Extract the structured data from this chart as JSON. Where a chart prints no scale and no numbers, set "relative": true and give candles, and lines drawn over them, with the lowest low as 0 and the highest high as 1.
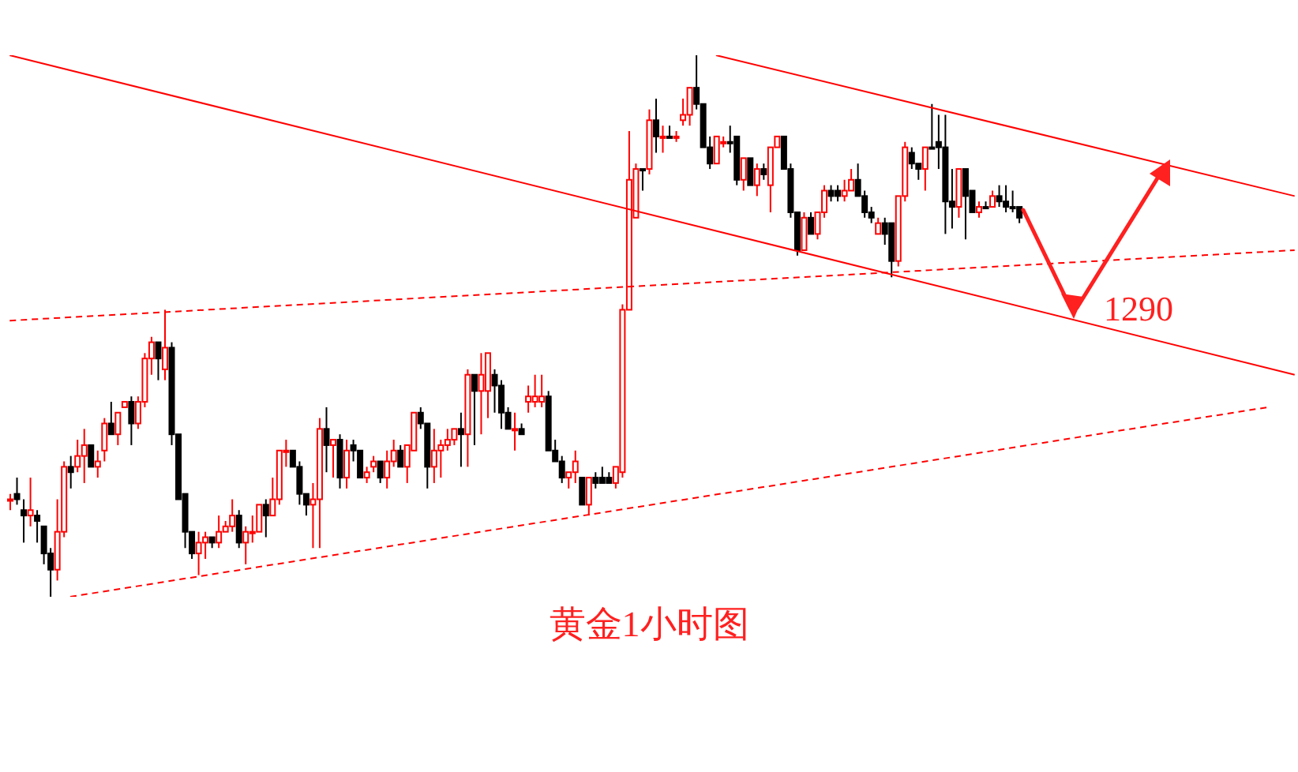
{
  "chart_data": {
    "type": "candlestick",
    "relative": true,
    "title": "黄金1小时图",
    "annotations": [
      "1290"
    ],
    "categories": [
      null,
      null,
      null,
      null,
      null,
      null,
      null,
      null,
      null,
      null,
      null,
      null,
      null,
      null,
      null,
      null,
      null,
      null,
      null,
      null,
      null,
      null,
      null,
      null,
      null,
      null,
      null,
      null,
      null,
      null,
      null,
      null,
      null,
      null,
      null,
      null,
      null,
      null,
      null,
      null,
      null,
      null,
      null,
      null,
      null,
      null,
      null,
      null,
      null,
      null,
      null,
      null,
      null,
      null,
      null,
      null,
      null,
      null,
      null,
      null,
      null,
      null,
      null,
      null,
      null,
      null,
      null,
      null,
      null,
      null,
      null,
      null,
      null,
      null,
      null,
      null,
      null,
      null,
      null,
      null,
      null,
      null,
      null,
      null,
      null,
      null,
      null,
      null,
      null,
      null,
      null,
      null,
      null,
      null,
      null,
      null,
      null,
      null,
      null,
      null,
      null,
      null,
      null,
      null,
      null,
      null,
      null,
      null,
      null,
      null,
      null,
      null,
      null,
      null,
      null,
      null,
      null,
      null,
      null,
      null,
      null,
      null,
      null,
      null,
      null,
      null,
      null,
      null,
      null,
      null,
      null,
      null,
      null,
      null,
      null,
      null,
      null,
      null,
      null,
      null,
      null,
      null,
      null,
      null,
      null,
      null,
      null,
      null,
      null,
      null,
      null,
      null,
      null,
      null,
      null,
      null,
      null,
      null,
      null,
      null,
      null,
      null,
      null,
      null,
      null,
      null,
      null,
      null,
      null,
      null,
      null,
      null,
      null,
      null,
      null,
      null,
      null,
      null,
      null,
      null,
      null,
      null,
      null,
      null,
      null,
      null,
      null,
      null,
      null,
      null,
      null,
      null
    ],
    "ohlc": [
      [
        0.18,
        0.19,
        0.16,
        0.18
      ],
      [
        0.19,
        0.22,
        0.17,
        0.18
      ],
      [
        0.16,
        0.18,
        0.1,
        0.15
      ],
      [
        0.15,
        0.22,
        0.13,
        0.16
      ],
      [
        0.15,
        0.16,
        0.1,
        0.14
      ],
      [
        0.13,
        0.13,
        0.06,
        0.08
      ],
      [
        0.08,
        0.09,
        0,
        0.05
      ],
      [
        0.05,
        0.18,
        0.03,
        0.12
      ],
      [
        0.12,
        0.25,
        0.11,
        0.24
      ],
      [
        0.24,
        0.26,
        0.2,
        0.23
      ],
      [
        0.24,
        0.29,
        0.23,
        0.26
      ],
      [
        0.26,
        0.31,
        0.21,
        0.28
      ],
      [
        0.28,
        0.28,
        0.24,
        0.24
      ],
      [
        0.24,
        0.27,
        0.22,
        0.25
      ],
      [
        0.27,
        0.33,
        0.25,
        0.32
      ],
      [
        0.32,
        0.36,
        0.3,
        0.3
      ],
      [
        0.3,
        0.34,
        0.28,
        0.34
      ],
      [
        0.35,
        0.36,
        0.35,
        0.36
      ],
      [
        0.36,
        0.37,
        0.28,
        0.32
      ],
      [
        0.32,
        0.37,
        0.31,
        0.36
      ],
      [
        0.36,
        0.45,
        0.35,
        0.44
      ],
      [
        0.44,
        0.48,
        0.41,
        0.47
      ],
      [
        0.47,
        0.47,
        0.4,
        0.44
      ],
      [
        0.42,
        0.53,
        0.4,
        0.46
      ],
      [
        0.46,
        0.47,
        0.28,
        0.3
      ],
      [
        0.3,
        0.3,
        0.18,
        0.18
      ],
      [
        0.19,
        0.19,
        0.09,
        0.12
      ],
      [
        0.12,
        0.12,
        0.07,
        0.08
      ],
      [
        0.08,
        0.12,
        0.04,
        0.1
      ],
      [
        0.1,
        0.12,
        0.07,
        0.11
      ],
      [
        0.11,
        0.11,
        0.09,
        0.1
      ],
      [
        0.1,
        0.15,
        0.09,
        0.12
      ],
      [
        0.12,
        0.14,
        0.12,
        0.13
      ],
      [
        0.13,
        0.18,
        0.12,
        0.15
      ],
      [
        0.15,
        0.16,
        0.09,
        0.1
      ],
      [
        0.1,
        0.13,
        0.06,
        0.12
      ],
      [
        0.12,
        0.15,
        0.1,
        0.12
      ],
      [
        0.12,
        0.17,
        0.12,
        0.17
      ],
      [
        0.17,
        0.18,
        0.11,
        0.15
      ],
      [
        0.15,
        0.22,
        0.15,
        0.18
      ],
      [
        0.18,
        0.27,
        0.17,
        0.27
      ],
      [
        0.27,
        0.29,
        0.24,
        0.27
      ],
      [
        0.27,
        0.27,
        0.24,
        0.24
      ],
      [
        0.24,
        0.25,
        0.17,
        0.19
      ],
      [
        0.19,
        0.19,
        0.15,
        0.17
      ],
      [
        0.17,
        0.21,
        0.09,
        0.18
      ],
      [
        0.18,
        0.33,
        0.09,
        0.31
      ],
      [
        0.31,
        0.35,
        0.23,
        0.28
      ],
      [
        0.28,
        0.29,
        0.22,
        0.29
      ],
      [
        0.29,
        0.3,
        0.2,
        0.22
      ],
      [
        0.22,
        0.29,
        0.2,
        0.27
      ],
      [
        0.28,
        0.29,
        0.25,
        0.27
      ],
      [
        0.27,
        0.27,
        0.22,
        0.22
      ],
      [
        0.22,
        0.24,
        0.21,
        0.23
      ],
      [
        0.24,
        0.26,
        0.23,
        0.25
      ],
      [
        0.25,
        0.25,
        0.21,
        0.22
      ],
      [
        0.22,
        0.27,
        0.2,
        0.25
      ],
      [
        0.25,
        0.29,
        0.24,
        0.27
      ],
      [
        0.27,
        0.28,
        0.24,
        0.24
      ],
      [
        0.24,
        0.28,
        0.21,
        0.28
      ],
      [
        0.27,
        0.34,
        0.27,
        0.34
      ],
      [
        0.34,
        0.35,
        0.31,
        0.32
      ],
      [
        0.32,
        0.32,
        0.2,
        0.24
      ],
      [
        0.24,
        0.31,
        0.21,
        0.27
      ],
      [
        0.27,
        0.29,
        0.22,
        0.28
      ],
      [
        0.28,
        0.31,
        0.27,
        0.29
      ],
      [
        0.29,
        0.31,
        0.28,
        0.31
      ],
      [
        0.31,
        0.34,
        0.24,
        0.3
      ],
      [
        0.3,
        0.42,
        0.24,
        0.41
      ],
      [
        0.41,
        0.41,
        0.28,
        0.38
      ],
      [
        0.38,
        0.45,
        0.3,
        0.41
      ],
      [
        0.38,
        0.45,
        0.33,
        0.45
      ],
      [
        0.41,
        0.42,
        0.34,
        0.39
      ],
      [
        0.39,
        0.4,
        0.31,
        0.34
      ],
      [
        0.34,
        0.35,
        0.31,
        0.31
      ],
      [
        0.31,
        0.34,
        0.27,
        0.31
      ],
      [
        0.31,
        0.32,
        0.3,
        0.3
      ],
      [
        0.36,
        0.39,
        0.34,
        0.37
      ],
      [
        0.36,
        0.41,
        0.35,
        0.37
      ],
      [
        0.36,
        0.41,
        0.35,
        0.37
      ],
      [
        0.37,
        0.38,
        0.27,
        0.27
      ],
      [
        0.27,
        0.29,
        0.25,
        0.25
      ],
      [
        0.25,
        0.26,
        0.21,
        0.22
      ],
      [
        0.22,
        0.23,
        0.2,
        0.23
      ],
      [
        0.23,
        0.27,
        0.21,
        0.25
      ],
      [
        0.22,
        0.22,
        0.17,
        0.17
      ],
      [
        0.17,
        0.22,
        0.15,
        0.22
      ],
      [
        0.22,
        0.23,
        0.2,
        0.21
      ],
      [
        0.22,
        0.24,
        0.21,
        0.21
      ],
      [
        0.22,
        0.23,
        0.21,
        0.21
      ],
      [
        0.21,
        0.24,
        0.2,
        0.24
      ],
      [
        0.23,
        0.54,
        0.22,
        0.53
      ],
      [
        0.53,
        0.86,
        0.53,
        0.77
      ],
      [
        0.7,
        0.8,
        0.7,
        0.79
      ],
      [
        0.79,
        0.79,
        0.75,
        0.79
      ],
      [
        0.79,
        0.9,
        0.78,
        0.88
      ],
      [
        0.88,
        0.92,
        0.82,
        0.85
      ],
      [
        0.85,
        0.87,
        0.82,
        0.85
      ],
      [
        0.85,
        0.87,
        0.85,
        0.85
      ],
      [
        0.85,
        0.86,
        0.84,
        0.85
      ],
      [
        0.88,
        0.92,
        0.87,
        0.89
      ],
      [
        0.89,
        0.94,
        0.87,
        0.94
      ],
      [
        0.94,
        1,
        0.9,
        0.91
      ],
      [
        0.91,
        0.91,
        0.83,
        0.83
      ],
      [
        0.83,
        0.85,
        0.79,
        0.8
      ],
      [
        0.8,
        0.85,
        0.8,
        0.85
      ],
      [
        0.84,
        0.85,
        0.83,
        0.84
      ],
      [
        0.84,
        0.87,
        0.82,
        0.84
      ],
      [
        0.85,
        0.85,
        0.76,
        0.77
      ],
      [
        0.77,
        0.81,
        0.75,
        0.81
      ],
      [
        0.81,
        0.81,
        0.76,
        0.76
      ],
      [
        0.76,
        0.8,
        0.74,
        0.79
      ],
      [
        0.79,
        0.8,
        0.77,
        0.78
      ],
      [
        0.76,
        0.83,
        0.71,
        0.83
      ],
      [
        0.83,
        0.85,
        0.83,
        0.85
      ],
      [
        0.85,
        0.85,
        0.79,
        0.79
      ],
      [
        0.79,
        0.8,
        0.7,
        0.71
      ],
      [
        0.71,
        0.71,
        0.63,
        0.64
      ],
      [
        0.64,
        0.71,
        0.64,
        0.7
      ],
      [
        0.7,
        0.71,
        0.67,
        0.67
      ],
      [
        0.67,
        0.71,
        0.66,
        0.71
      ],
      [
        0.71,
        0.76,
        0.7,
        0.75
      ],
      [
        0.75,
        0.76,
        0.73,
        0.74
      ],
      [
        0.75,
        0.76,
        0.73,
        0.74
      ],
      [
        0.74,
        0.77,
        0.73,
        0.75
      ],
      [
        0.75,
        0.79,
        0.75,
        0.77
      ],
      [
        0.77,
        0.8,
        0.74,
        0.74
      ],
      [
        0.74,
        0.75,
        0.7,
        0.71
      ],
      [
        0.71,
        0.72,
        0.69,
        0.7
      ],
      [
        0.67,
        0.7,
        0.67,
        0.69
      ],
      [
        0.69,
        0.7,
        0.65,
        0.67
      ],
      [
        0.69,
        0.69,
        0.59,
        0.62
      ],
      [
        0.62,
        0.74,
        0.61,
        0.74
      ],
      [
        0.74,
        0.84,
        0.73,
        0.83
      ],
      [
        0.82,
        0.83,
        0.79,
        0.8
      ],
      [
        0.8,
        0.8,
        0.77,
        0.79
      ],
      [
        0.79,
        0.83,
        0.75,
        0.83
      ],
      [
        0.83,
        0.91,
        0.83,
        0.83
      ],
      [
        0.84,
        0.89,
        0.79,
        0.83
      ],
      [
        0.83,
        0.89,
        0.67,
        0.73
      ],
      [
        0.73,
        0.79,
        0.68,
        0.72
      ],
      [
        0.72,
        0.79,
        0.7,
        0.79
      ],
      [
        0.79,
        0.79,
        0.66,
        0.74
      ],
      [
        0.75,
        0.75,
        0.71,
        0.71
      ],
      [
        0.71,
        0.73,
        0.7,
        0.72
      ],
      [
        0.72,
        0.73,
        0.72,
        0.72
      ],
      [
        0.72,
        0.75,
        0.72,
        0.74
      ],
      [
        0.74,
        0.76,
        0.72,
        0.73
      ],
      [
        0.73,
        0.76,
        0.71,
        0.72
      ],
      [
        0.72,
        0.75,
        0.71,
        0.72
      ],
      [
        0.72,
        0.72,
        0.69,
        0.7
      ],
      null,
      null,
      null,
      null,
      null,
      null,
      null,
      null,
      null,
      null,
      null,
      null,
      null,
      null,
      null,
      null,
      null,
      null,
      null,
      null,
      null,
      null,
      null,
      null,
      null,
      null,
      null,
      null,
      null,
      null,
      null,
      null,
      null,
      null,
      null,
      null,
      null,
      null,
      null,
      null,
      null
    ],
    "colors": [
      "#ff0000",
      "#000000",
      "#000000",
      "#ff0000",
      "#000000",
      "#000000",
      "#000000",
      "#ff0000",
      "#ff0000",
      "#000000",
      "#ff0000",
      "#ff0000",
      "#000000",
      "#ff0000",
      "#ff0000",
      "#000000",
      "#ff0000",
      "#ff0000",
      "#000000",
      "#ff0000",
      "#ff0000",
      "#ff0000",
      "#000000",
      "#ff0000",
      "#000000",
      "#000000",
      "#000000",
      "#000000",
      "#ff0000",
      "#ff0000",
      "#000000",
      "#ff0000",
      "#ff0000",
      "#ff0000",
      "#000000",
      "#ff0000",
      "#ff0000",
      "#ff0000",
      "#000000",
      "#ff0000",
      "#ff0000",
      "#ff0000",
      "#000000",
      "#000000",
      "#000000",
      "#ff0000",
      "#ff0000",
      "#000000",
      "#ff0000",
      "#000000",
      "#ff0000",
      "#000000",
      "#000000",
      "#ff0000",
      "#ff0000",
      "#000000",
      "#ff0000",
      "#ff0000",
      "#000000",
      "#ff0000",
      "#ff0000",
      "#000000",
      "#000000",
      "#ff0000",
      "#ff0000",
      "#ff0000",
      "#ff0000",
      "#000000",
      "#ff0000",
      "#000000",
      "#ff0000",
      "#ff0000",
      "#000000",
      "#000000",
      "#000000",
      "#ff0000",
      "#000000",
      "#ff0000",
      "#ff0000",
      "#ff0000",
      "#000000",
      "#000000",
      "#000000",
      "#ff0000",
      "#ff0000",
      "#000000",
      "#ff0000",
      "#000000",
      "#000000",
      "#000000",
      "#ff0000",
      "#ff0000",
      "#ff0000",
      "#ff0000",
      "#000000",
      "#ff0000",
      "#000000",
      "#ff0000",
      "#000000",
      "#ff0000",
      "#ff0000",
      "#ff0000",
      "#000000",
      "#000000",
      "#000000",
      "#ff0000",
      "#ff0000",
      "#000000",
      "#000000",
      "#ff0000",
      "#000000",
      "#ff0000",
      "#000000",
      "#ff0000",
      "#ff0000",
      "#000000",
      "#000000",
      "#000000",
      "#ff0000",
      "#000000",
      "#ff0000",
      "#ff0000",
      "#000000",
      "#000000",
      "#ff0000",
      "#ff0000",
      "#000000",
      "#000000",
      "#000000",
      "#ff0000",
      "#000000",
      "#000000",
      "#ff0000",
      "#ff0000",
      "#000000",
      "#000000",
      "#ff0000",
      "#000000",
      "#000000",
      "#000000",
      "#000000",
      "#ff0000",
      "#000000",
      "#000000",
      "#ff0000",
      "#000000",
      "#ff0000",
      "#000000",
      "#000000",
      "#000000",
      "#000000",
      null,
      null,
      null,
      null,
      null,
      null,
      null,
      null,
      null,
      null,
      null,
      null,
      null,
      null,
      null,
      null,
      null,
      null,
      null,
      null,
      null,
      null,
      null,
      null,
      null,
      null,
      null,
      null,
      null,
      null,
      null,
      null,
      null,
      null,
      null,
      null,
      null,
      null,
      null,
      null,
      null
    ],
    "series": [
      {
        "type": "line",
        "color": "#ff0000",
        "line_style": "solid",
        "values": [
          1.0,
          null,
          null,
          null,
          null,
          null,
          null,
          null,
          null,
          null,
          null,
          null,
          null,
          null,
          null,
          null,
          null,
          null,
          null,
          null,
          null,
          null,
          null,
          null,
          null,
          null,
          null,
          null,
          null,
          null,
          null,
          null,
          null,
          null,
          null,
          null,
          null,
          null,
          null,
          null,
          null,
          null,
          null,
          null,
          null,
          null,
          null,
          null,
          null,
          null,
          null,
          null,
          null,
          null,
          null,
          null,
          null,
          null,
          null,
          null,
          null,
          null,
          null,
          null,
          null,
          null,
          null,
          null,
          null,
          null,
          null,
          null,
          null,
          null,
          null,
          null,
          null,
          null,
          null,
          null,
          null,
          null,
          null,
          null,
          null,
          null,
          null,
          null,
          null,
          null,
          null,
          null,
          null,
          null,
          null,
          null,
          null,
          null,
          null,
          null,
          null,
          null,
          null,
          null,
          null,
          null,
          null,
          null,
          null,
          null,
          null,
          null,
          null,
          null,
          null,
          null,
          null,
          null,
          null,
          null,
          null,
          null,
          null,
          null,
          null,
          null,
          null,
          null,
          null,
          null,
          null,
          null,
          null,
          null,
          null,
          null,
          null,
          null,
          null,
          null,
          null,
          null,
          null,
          null,
          null,
          null,
          null,
          null,
          null,
          null,
          null,
          null,
          null,
          null,
          null,
          null,
          null,
          null,
          null,
          null,
          null,
          null,
          null,
          null,
          null,
          null,
          null,
          null,
          null,
          null,
          null,
          null,
          null,
          null,
          null,
          null,
          null,
          null,
          null,
          null,
          null,
          null,
          null,
          null,
          null,
          null,
          null,
          null,
          null,
          null,
          null,
          0.41
        ]
      },
      {
        "type": "line",
        "color": "#ff0000",
        "line_style": "solid",
        "values": [
          null,
          null,
          null,
          null,
          null,
          null,
          null,
          null,
          null,
          null,
          null,
          null,
          null,
          null,
          null,
          null,
          null,
          null,
          null,
          null,
          null,
          null,
          null,
          null,
          null,
          null,
          null,
          null,
          null,
          null,
          null,
          null,
          null,
          null,
          null,
          null,
          null,
          null,
          null,
          null,
          null,
          null,
          null,
          null,
          null,
          null,
          null,
          null,
          null,
          null,
          null,
          null,
          null,
          null,
          null,
          null,
          null,
          null,
          null,
          null,
          null,
          null,
          null,
          null,
          null,
          null,
          null,
          null,
          null,
          null,
          null,
          null,
          null,
          null,
          null,
          null,
          null,
          null,
          null,
          null,
          null,
          null,
          null,
          null,
          null,
          null,
          null,
          null,
          null,
          null,
          null,
          null,
          null,
          null,
          null,
          null,
          null,
          null,
          null,
          null,
          null,
          null,
          null,
          null,
          null,
          1.0,
          null,
          null,
          null,
          null,
          null,
          null,
          null,
          null,
          null,
          null,
          null,
          null,
          null,
          null,
          null,
          null,
          null,
          null,
          null,
          null,
          null,
          null,
          null,
          null,
          null,
          null,
          null,
          null,
          null,
          null,
          null,
          null,
          null,
          null,
          null,
          null,
          null,
          null,
          null,
          null,
          null,
          null,
          null,
          null,
          null,
          null,
          null,
          null,
          null,
          null,
          null,
          null,
          null,
          null,
          null,
          null,
          null,
          null,
          null,
          null,
          null,
          null,
          null,
          null,
          null,
          null,
          null,
          null,
          null,
          null,
          null,
          null,
          null,
          null,
          null,
          null,
          null,
          null,
          null,
          null,
          null,
          null,
          null,
          null,
          null,
          0.74
        ]
      },
      {
        "type": "line",
        "color": "#ff0000",
        "line_style": "dashed",
        "values": [
          0.51,
          null,
          null,
          null,
          null,
          null,
          null,
          null,
          null,
          null,
          null,
          null,
          null,
          null,
          null,
          null,
          null,
          null,
          null,
          null,
          null,
          null,
          null,
          null,
          null,
          null,
          null,
          null,
          null,
          null,
          null,
          null,
          null,
          null,
          null,
          null,
          null,
          null,
          null,
          null,
          null,
          null,
          null,
          null,
          null,
          null,
          null,
          null,
          null,
          null,
          null,
          null,
          null,
          null,
          null,
          null,
          null,
          null,
          null,
          null,
          null,
          null,
          null,
          null,
          null,
          null,
          null,
          null,
          null,
          null,
          null,
          null,
          null,
          null,
          null,
          null,
          null,
          null,
          null,
          null,
          null,
          null,
          null,
          null,
          null,
          null,
          null,
          null,
          null,
          null,
          null,
          null,
          null,
          null,
          null,
          null,
          null,
          null,
          null,
          null,
          null,
          null,
          null,
          null,
          null,
          null,
          null,
          null,
          null,
          null,
          null,
          null,
          null,
          null,
          null,
          null,
          null,
          null,
          null,
          null,
          null,
          null,
          null,
          null,
          null,
          null,
          null,
          null,
          null,
          null,
          null,
          null,
          null,
          null,
          null,
          null,
          null,
          null,
          null,
          null,
          null,
          null,
          null,
          null,
          null,
          null,
          null,
          null,
          null,
          null,
          null,
          null,
          null,
          null,
          null,
          null,
          null,
          null,
          null,
          null,
          null,
          null,
          null,
          null,
          null,
          null,
          null,
          null,
          null,
          null,
          null,
          null,
          null,
          null,
          null,
          null,
          null,
          null,
          null,
          null,
          null,
          null,
          null,
          null,
          null,
          null,
          null,
          null,
          null,
          null,
          null,
          0.64
        ]
      },
      {
        "type": "line",
        "color": "#ff0000",
        "line_style": "dashed",
        "values": [
          null,
          null,
          null,
          null,
          null,
          null,
          null,
          null,
          null,
          0,
          null,
          null,
          null,
          null,
          null,
          null,
          null,
          null,
          null,
          null,
          null,
          null,
          null,
          null,
          null,
          null,
          null,
          null,
          null,
          null,
          null,
          null,
          null,
          null,
          null,
          null,
          null,
          null,
          null,
          null,
          null,
          null,
          null,
          null,
          null,
          null,
          null,
          null,
          null,
          null,
          null,
          null,
          null,
          null,
          null,
          null,
          null,
          null,
          null,
          null,
          null,
          null,
          null,
          null,
          null,
          null,
          null,
          null,
          null,
          null,
          null,
          null,
          null,
          null,
          null,
          null,
          null,
          null,
          null,
          null,
          null,
          null,
          null,
          null,
          null,
          null,
          null,
          null,
          null,
          null,
          null,
          null,
          null,
          null,
          null,
          null,
          null,
          null,
          null,
          null,
          null,
          null,
          null,
          null,
          null,
          null,
          null,
          null,
          null,
          null,
          null,
          null,
          null,
          null,
          null,
          null,
          null,
          null,
          null,
          null,
          null,
          null,
          null,
          null,
          null,
          null,
          null,
          null,
          null,
          null,
          null,
          null,
          null,
          null,
          null,
          null,
          null,
          null,
          null,
          null,
          null,
          null,
          null,
          null,
          null,
          null,
          null,
          null,
          null,
          null,
          null,
          null,
          null,
          null,
          null,
          null,
          null,
          null,
          null,
          null,
          null,
          null,
          null,
          null,
          null,
          null,
          null,
          null,
          null,
          null,
          null,
          null,
          null,
          null,
          null,
          null,
          null,
          null,
          null,
          null,
          null,
          null,
          null,
          null,
          null,
          null,
          null,
          0.35,
          null,
          null,
          null,
          null
        ]
      }
    ]
  }
}
